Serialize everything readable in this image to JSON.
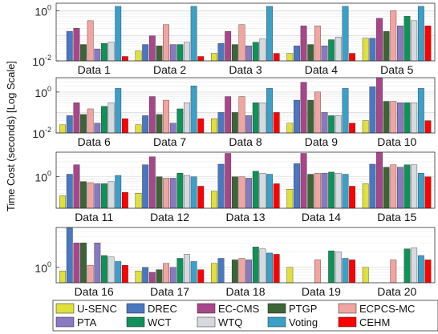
{
  "chart_data": {
    "type": "bar",
    "ylabel": "Time Cost (seconds) [Log Scale]",
    "yscale": "log",
    "grid": true,
    "legend_position": "bottom",
    "series_names": [
      "U-SENC",
      "DREC",
      "EC-CMS",
      "PTGP",
      "ECPCS-MC",
      "PTA",
      "WCT",
      "WTQ",
      "Voting",
      "CEHM"
    ],
    "colors": [
      "#e0e03a",
      "#4a78c0",
      "#a8468a",
      "#3c6438",
      "#f2a5a0",
      "#8a78c0",
      "#10915a",
      "#d8d8e0",
      "#3aa0c8",
      "#ff0000"
    ],
    "panels": [
      {
        "categories": [
          "Data 1",
          "Data 2",
          "Data 3",
          "Data 4",
          "Data 5"
        ],
        "ylim": [
          0.01,
          2
        ],
        "yticks": [
          {
            "value": 0.01,
            "base": "10",
            "exp": "-2"
          },
          {
            "value": 1,
            "base": "10",
            "exp": "0"
          }
        ],
        "values": [
          [
            0,
            0.15,
            0.2,
            0.045,
            0.4,
            0.03,
            0.05,
            0.055,
            1.5,
            0.015
          ],
          [
            0.025,
            0.045,
            0.1,
            0.04,
            0.28,
            0.045,
            0.045,
            0.055,
            1.5,
            0.015
          ],
          [
            0.02,
            0.05,
            0.15,
            0.045,
            0.28,
            0.04,
            0.055,
            0.075,
            1.5,
            0.02
          ],
          [
            0.02,
            0.04,
            0.25,
            0.045,
            0.25,
            0.04,
            0.07,
            0.09,
            1.5,
            0.02
          ],
          [
            0.08,
            0.08,
            0.5,
            0.15,
            1.0,
            0.25,
            0.6,
            0.4,
            1.5,
            0.25
          ]
        ]
      },
      {
        "categories": [
          "Data 6",
          "Data 7",
          "Data 8",
          "Data 9",
          "Data 10"
        ],
        "ylim": [
          0.01,
          5
        ],
        "yticks": [
          {
            "value": 0.01,
            "base": "10",
            "exp": "-2"
          },
          {
            "value": 1,
            "base": "10",
            "exp": "0"
          }
        ],
        "values": [
          [
            0.025,
            0.07,
            0.3,
            0.08,
            0.15,
            0.03,
            0.2,
            0.3,
            1.5,
            0.05
          ],
          [
            0.025,
            0.07,
            0.6,
            0.08,
            0.4,
            0.03,
            0.15,
            0.3,
            2.0,
            0.05
          ],
          [
            0.05,
            0.1,
            0.6,
            0.1,
            0.6,
            0.07,
            0.3,
            0.3,
            1.5,
            0.1
          ],
          [
            0.03,
            0.4,
            3.0,
            0.4,
            1.0,
            0.1,
            0.07,
            0.07,
            1.5,
            0.03
          ],
          [
            0.04,
            1.8,
            6.0,
            0.35,
            0.35,
            0.3,
            0.3,
            0.3,
            1.5,
            0.04
          ]
        ]
      },
      {
        "categories": [
          "Data 11",
          "Data 12",
          "Data 13",
          "Data 14",
          "Data 15"
        ],
        "ylim": [
          0.1,
          6
        ],
        "yticks": [
          {
            "value": 1,
            "base": "10",
            "exp": "0"
          }
        ],
        "values": [
          [
            0.25,
            1.2,
            2.4,
            0.7,
            0.65,
            0.6,
            0.6,
            0.7,
            1.1,
            0.32
          ],
          [
            0.3,
            2.4,
            4.3,
            1.0,
            0.9,
            0.9,
            1.3,
            1.1,
            1.0,
            0.5
          ],
          [
            0.35,
            2.5,
            5.5,
            1.0,
            1.0,
            0.9,
            1.5,
            1.3,
            1.2,
            0.6
          ],
          [
            0.4,
            2.6,
            5.5,
            1.2,
            1.3,
            1.3,
            1.4,
            1.3,
            1.2,
            0.5
          ],
          [
            0.6,
            2.5,
            6.0,
            2.0,
            2.4,
            2.0,
            2.4,
            2.4,
            1.3,
            1.0
          ]
        ]
      },
      {
        "categories": [
          "Data 16",
          "Data 17",
          "Data 18",
          "Data 19",
          "Data 20"
        ],
        "ylim": [
          0.5,
          6
        ],
        "yticks": [
          {
            "value": 1,
            "base": "10",
            "exp": "0"
          }
        ],
        "values": [
          [
            0.85,
            6.0,
            3.0,
            3.0,
            1.1,
            3.0,
            1.7,
            1.6,
            1.3,
            1.1
          ],
          [
            0.85,
            1.0,
            0.8,
            0.9,
            1.2,
            1.0,
            1.5,
            1.8,
            1.3,
            0.9
          ],
          [
            1.2,
            1.5,
            0,
            1.4,
            1.5,
            1.4,
            2.5,
            2.3,
            1.9,
            1.8
          ],
          [
            1.0,
            0,
            0,
            0,
            1.4,
            0,
            2.1,
            2.0,
            1.5,
            1.4
          ],
          [
            1.0,
            0,
            0,
            0,
            1.4,
            0,
            2.3,
            2.4,
            1.7,
            1.4
          ]
        ]
      }
    ]
  }
}
